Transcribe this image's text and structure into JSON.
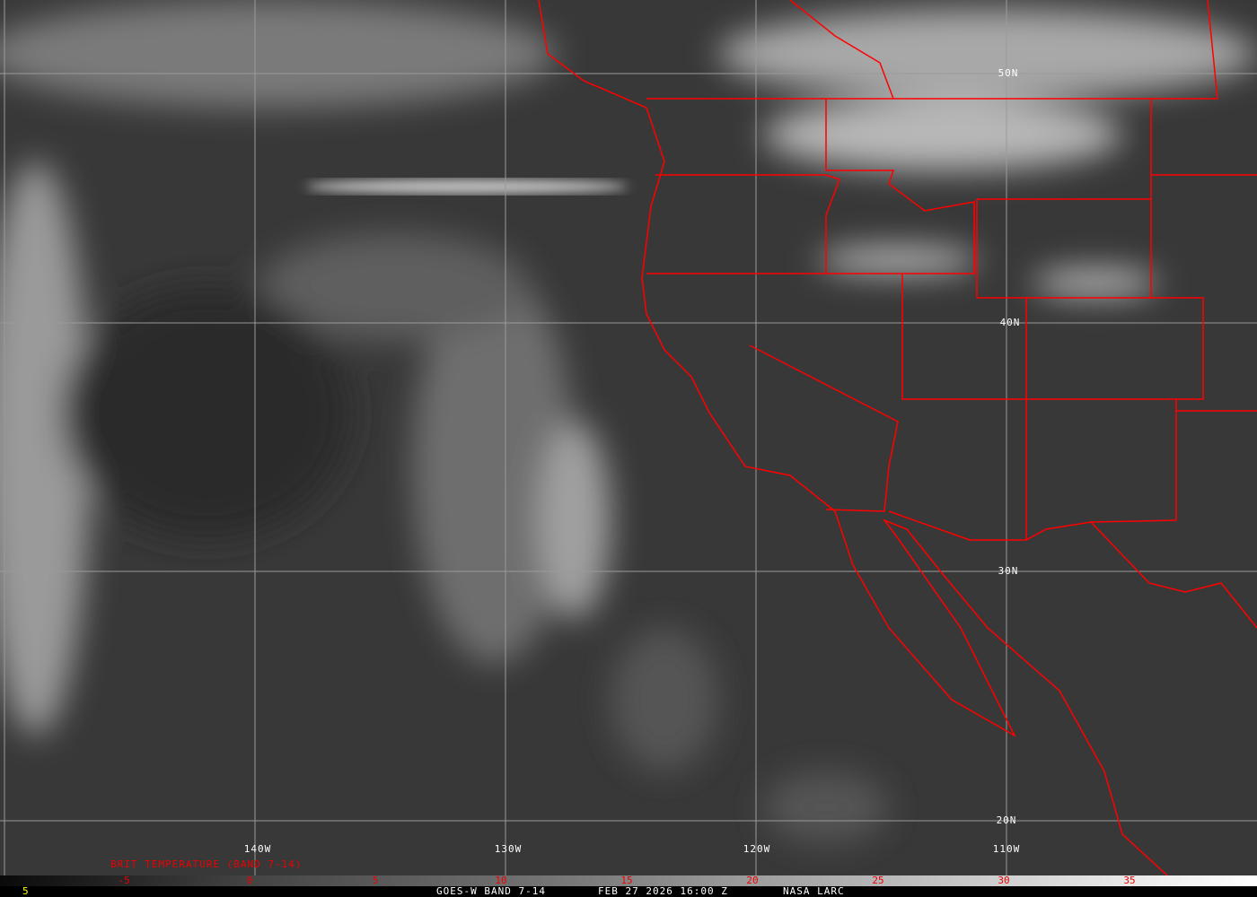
{
  "map": {
    "lat_labels": [
      "50N",
      "40N",
      "30N",
      "20N"
    ],
    "lon_labels": [
      "140W",
      "130W",
      "120W",
      "110W"
    ],
    "border_color": "#ff0000",
    "grid_color": "#9a9a9a"
  },
  "legend": {
    "title": "BRIT TEMPERATURE (BAND 7-14)",
    "ticks": [
      "-5",
      "0",
      "5",
      "10",
      "15",
      "20",
      "25",
      "30",
      "35"
    ],
    "corner_value": "5"
  },
  "footer": {
    "satellite": "GOES-W BAND 7-14",
    "datetime": "FEB 27 2026 16:00 Z",
    "source": "NASA LARC"
  }
}
